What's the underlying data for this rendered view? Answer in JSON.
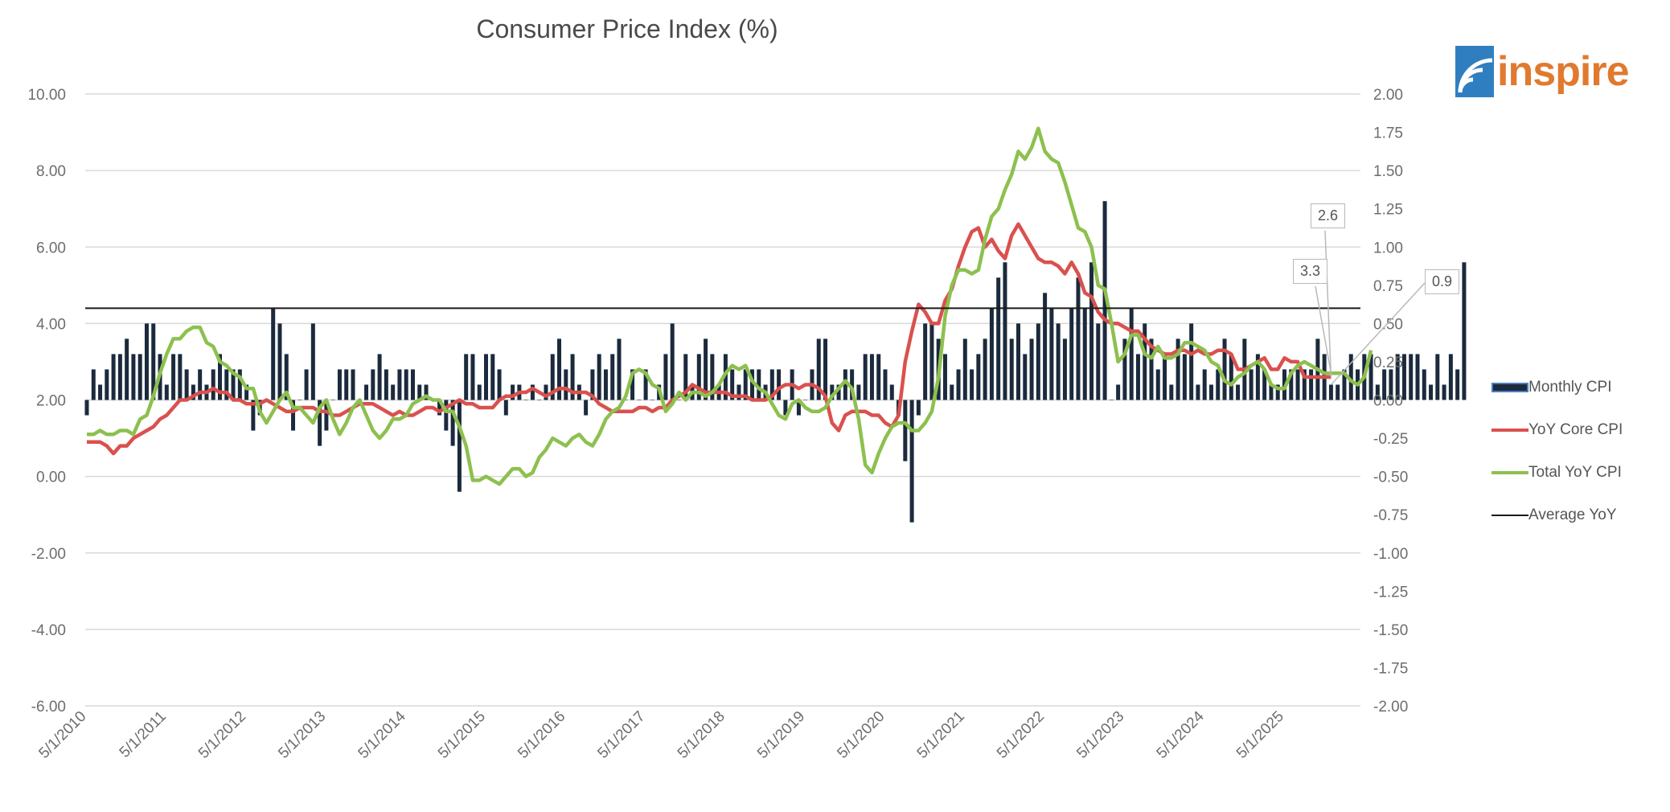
{
  "chart_data": {
    "type": "bar",
    "title": "Consumer Price Index (%)",
    "y_left": {
      "ticks": [
        "10.00",
        "8.00",
        "6.00",
        "4.00",
        "2.00",
        "0.00",
        "-2.00",
        "-4.00",
        "-6.00"
      ],
      "range": [
        -6,
        10
      ]
    },
    "y_right": {
      "ticks": [
        "2.00",
        "1.75",
        "1.50",
        "1.25",
        "1.00",
        "0.75",
        "0.50",
        "0.25",
        "0.00",
        "-0.25",
        "-0.50",
        "-0.75",
        "-1.00",
        "-1.25",
        "-1.50",
        "-1.75",
        "-2.00"
      ],
      "range": [
        -2,
        2
      ]
    },
    "x_labels": [
      "5/1/2010",
      "5/1/2011",
      "5/1/2012",
      "5/1/2013",
      "5/1/2014",
      "5/1/2015",
      "5/1/2016",
      "5/1/2017",
      "5/1/2018",
      "5/1/2019",
      "5/1/2020",
      "5/1/2021",
      "5/1/2022",
      "5/1/2023",
      "5/1/2024",
      "5/1/2025"
    ],
    "x_start": "2010-05",
    "grid": true,
    "legend_position": "right",
    "average_yoy": 4.4,
    "series": [
      {
        "name": "Monthly CPI",
        "kind": "bar",
        "axis": "right",
        "color": "#1b2a3c",
        "values": [
          -0.1,
          0.2,
          0.1,
          0.2,
          0.3,
          0.3,
          0.4,
          0.3,
          0.3,
          0.5,
          0.5,
          0.3,
          0.1,
          0.3,
          0.3,
          0.2,
          0.1,
          0.2,
          0.1,
          0.2,
          0.3,
          0.2,
          0.2,
          0.2,
          0.1,
          -0.2,
          -0.1,
          0.0,
          0.6,
          0.5,
          0.3,
          -0.2,
          0.0,
          0.2,
          0.5,
          -0.3,
          -0.2,
          0.0,
          0.2,
          0.2,
          0.2,
          0.0,
          0.1,
          0.2,
          0.3,
          0.2,
          0.1,
          0.2,
          0.2,
          0.2,
          0.1,
          0.1,
          0.0,
          -0.1,
          -0.2,
          -0.3,
          -0.6,
          0.3,
          0.3,
          0.1,
          0.3,
          0.3,
          0.2,
          -0.1,
          0.1,
          0.1,
          0.0,
          0.1,
          0.0,
          0.1,
          0.3,
          0.4,
          0.2,
          0.3,
          0.1,
          -0.1,
          0.2,
          0.3,
          0.2,
          0.3,
          0.4,
          0.0,
          0.2,
          0.0,
          0.2,
          0.0,
          0.1,
          0.3,
          0.5,
          0.0,
          0.3,
          0.1,
          0.3,
          0.4,
          0.3,
          0.1,
          0.3,
          0.2,
          0.1,
          0.2,
          0.2,
          0.2,
          0.1,
          0.2,
          0.2,
          -0.1,
          0.2,
          -0.1,
          0.0,
          0.2,
          0.4,
          0.4,
          0.1,
          0.1,
          0.2,
          0.2,
          0.1,
          0.3,
          0.3,
          0.3,
          0.2,
          0.1,
          -0.1,
          -0.4,
          -0.8,
          -0.1,
          0.5,
          0.5,
          0.4,
          0.3,
          0.1,
          0.2,
          0.4,
          0.2,
          0.3,
          0.4,
          0.6,
          0.8,
          0.9,
          0.4,
          0.5,
          0.3,
          0.4,
          0.5,
          0.7,
          0.6,
          0.5,
          0.4,
          0.6,
          0.8,
          0.6,
          0.9,
          0.5,
          1.3,
          0.0,
          0.1,
          0.4,
          0.6,
          0.3,
          0.5,
          0.4,
          0.2,
          0.3,
          0.1,
          0.4,
          0.3,
          0.5,
          0.1,
          0.2,
          0.1,
          0.2,
          0.4,
          0.3,
          0.1,
          0.4,
          0.2,
          0.3,
          0.2,
          0.1,
          0.1,
          0.2,
          0.2,
          0.2,
          0.2,
          0.2,
          0.4,
          0.3,
          0.1,
          0.1,
          0.2,
          0.3,
          0.2,
          0.3,
          0.3,
          0.1,
          0.2,
          0.2,
          0.3,
          0.3,
          0.3,
          0.3,
          0.2,
          0.1,
          0.3,
          0.1,
          0.3,
          0.2,
          0.9
        ]
      },
      {
        "name": "YoY Core CPI",
        "kind": "line",
        "axis": "left",
        "color": "#d9514e",
        "values": [
          0.9,
          0.9,
          0.9,
          0.8,
          0.6,
          0.8,
          0.8,
          1.0,
          1.1,
          1.2,
          1.3,
          1.5,
          1.6,
          1.8,
          2.0,
          2.0,
          2.1,
          2.2,
          2.2,
          2.3,
          2.2,
          2.2,
          2.0,
          2.0,
          1.9,
          1.9,
          1.9,
          2.0,
          1.9,
          1.8,
          1.7,
          1.7,
          1.8,
          1.8,
          1.8,
          1.7,
          1.7,
          1.6,
          1.6,
          1.7,
          1.8,
          1.9,
          1.9,
          1.9,
          1.8,
          1.7,
          1.6,
          1.7,
          1.6,
          1.6,
          1.7,
          1.8,
          1.8,
          1.7,
          1.8,
          1.9,
          2.0,
          1.9,
          1.9,
          1.8,
          1.8,
          1.8,
          2.0,
          2.1,
          2.1,
          2.2,
          2.2,
          2.3,
          2.2,
          2.1,
          2.2,
          2.3,
          2.3,
          2.2,
          2.2,
          2.2,
          2.1,
          1.9,
          1.8,
          1.7,
          1.7,
          1.7,
          1.7,
          1.8,
          1.8,
          1.7,
          1.8,
          1.8,
          2.0,
          2.1,
          2.2,
          2.4,
          2.3,
          2.2,
          2.2,
          2.2,
          2.2,
          2.1,
          2.1,
          2.1,
          2.0,
          2.0,
          2.0,
          2.1,
          2.3,
          2.4,
          2.4,
          2.3,
          2.4,
          2.4,
          2.3,
          2.1,
          1.4,
          1.2,
          1.6,
          1.7,
          1.7,
          1.7,
          1.6,
          1.6,
          1.4,
          1.3,
          1.6,
          3.0,
          3.8,
          4.5,
          4.3,
          4.0,
          4.0,
          4.6,
          4.9,
          5.5,
          6.0,
          6.4,
          6.5,
          6.0,
          6.2,
          5.9,
          5.7,
          6.3,
          6.6,
          6.3,
          6.0,
          5.7,
          5.6,
          5.6,
          5.5,
          5.3,
          5.6,
          5.3,
          4.8,
          4.7,
          4.3,
          4.1,
          4.0,
          4.0,
          3.9,
          3.8,
          3.8,
          3.6,
          3.4,
          3.3,
          3.2,
          3.2,
          3.3,
          3.3,
          3.2,
          3.3,
          3.2,
          3.2,
          3.3,
          3.3,
          3.2,
          2.8,
          2.8,
          2.9,
          3.0,
          3.1,
          2.8,
          2.8,
          3.1,
          3.0,
          3.0,
          2.6,
          2.6,
          2.6,
          2.6,
          2.6
        ],
        "callout": "2.6"
      },
      {
        "name": "Total YoY CPI",
        "kind": "line",
        "axis": "left",
        "color": "#8dc04f",
        "values": [
          1.1,
          1.1,
          1.2,
          1.1,
          1.1,
          1.2,
          1.2,
          1.1,
          1.5,
          1.6,
          2.1,
          2.7,
          3.2,
          3.6,
          3.6,
          3.8,
          3.9,
          3.9,
          3.5,
          3.4,
          3.0,
          2.9,
          2.7,
          2.6,
          2.3,
          2.3,
          1.7,
          1.4,
          1.7,
          2.0,
          2.2,
          1.8,
          1.8,
          1.6,
          1.4,
          1.8,
          2.0,
          1.5,
          1.1,
          1.4,
          1.8,
          2.0,
          1.6,
          1.2,
          1.0,
          1.2,
          1.5,
          1.5,
          1.6,
          1.9,
          2.0,
          2.1,
          2.0,
          2.0,
          1.7,
          1.7,
          1.3,
          0.8,
          -0.1,
          -0.1,
          0.0,
          -0.1,
          -0.2,
          0.0,
          0.2,
          0.2,
          0.0,
          0.1,
          0.5,
          0.7,
          1.0,
          0.9,
          0.8,
          1.0,
          1.1,
          0.9,
          0.8,
          1.1,
          1.5,
          1.7,
          1.8,
          2.1,
          2.7,
          2.8,
          2.7,
          2.4,
          2.3,
          1.7,
          1.9,
          2.2,
          2.0,
          2.2,
          2.2,
          2.1,
          2.2,
          2.4,
          2.7,
          2.9,
          2.8,
          2.9,
          2.5,
          2.3,
          2.2,
          1.9,
          1.6,
          1.5,
          1.9,
          2.0,
          1.8,
          1.7,
          1.7,
          1.8,
          2.1,
          2.3,
          2.5,
          2.3,
          1.5,
          0.3,
          0.1,
          0.6,
          1.0,
          1.3,
          1.4,
          1.4,
          1.2,
          1.2,
          1.4,
          1.7,
          2.6,
          4.2,
          5.0,
          5.4,
          5.4,
          5.3,
          5.4,
          6.2,
          6.8,
          7.0,
          7.5,
          7.9,
          8.5,
          8.3,
          8.6,
          9.1,
          8.5,
          8.3,
          8.2,
          7.7,
          7.1,
          6.5,
          6.4,
          6.0,
          5.0,
          4.9,
          4.0,
          3.0,
          3.2,
          3.7,
          3.7,
          3.2,
          3.1,
          3.4,
          3.1,
          3.1,
          3.2,
          3.5,
          3.5,
          3.4,
          3.3,
          3.0,
          2.9,
          2.5,
          2.4,
          2.6,
          2.7,
          2.9,
          3.0,
          2.8,
          2.4,
          2.3,
          2.3,
          2.7,
          2.9,
          3.0,
          2.9,
          2.8,
          2.7,
          2.7,
          2.7,
          2.7,
          2.5,
          2.4,
          2.6,
          3.3
        ],
        "callout": "3.3"
      },
      {
        "name": "Average YoY",
        "kind": "hline",
        "axis": "left",
        "color": "#1a1a1a",
        "value": 4.4
      }
    ],
    "callouts": [
      {
        "series": "YoY Core CPI",
        "label": "2.6"
      },
      {
        "series": "Total YoY CPI",
        "label": "3.3"
      },
      {
        "series": "Monthly CPI",
        "label": "0.9"
      }
    ]
  },
  "brand": {
    "name": "inspire",
    "text_color": "#e07a2f",
    "mark_color": "#2f7fc0",
    "mark_icon": "signal-arcs-icon"
  }
}
